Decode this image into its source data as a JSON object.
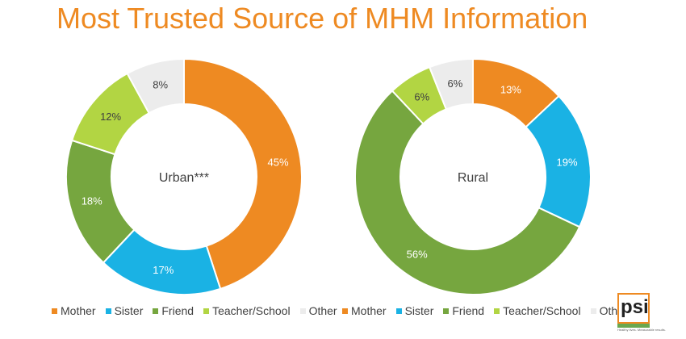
{
  "title": "Most Trusted Source of MHM Information",
  "legend": [
    {
      "label": "Mother",
      "color": "#ee8a22"
    },
    {
      "label": "Sister",
      "color": "#1ab2e4"
    },
    {
      "label": "Friend",
      "color": "#76a63f"
    },
    {
      "label": "Teacher/School",
      "color": "#b2d543"
    },
    {
      "label": "Other",
      "color": "#ececec"
    }
  ],
  "logo": {
    "text": "psi",
    "tagline": "Healthy lives. Measurable results."
  },
  "chart_data": [
    {
      "type": "pie",
      "subtype": "donut",
      "center_label": "Urban***",
      "categories": [
        "Mother",
        "Sister",
        "Friend",
        "Teacher/School",
        "Other"
      ],
      "values": [
        45,
        17,
        18,
        12,
        8
      ],
      "labels": [
        "45%",
        "17%",
        "18%",
        "12%",
        "8%"
      ],
      "colors": [
        "#ee8a22",
        "#1ab2e4",
        "#76a63f",
        "#b2d543",
        "#ececec"
      ],
      "legend_position": "bottom"
    },
    {
      "type": "pie",
      "subtype": "donut",
      "center_label": "Rural",
      "categories": [
        "Mother",
        "Sister",
        "Friend",
        "Teacher/School",
        "Other"
      ],
      "values": [
        13,
        19,
        56,
        6,
        6
      ],
      "labels": [
        "13%",
        "19%",
        "56%",
        "6%",
        "6%"
      ],
      "colors": [
        "#ee8a22",
        "#1ab2e4",
        "#76a63f",
        "#b2d543",
        "#ececec"
      ],
      "legend_position": "bottom"
    }
  ]
}
